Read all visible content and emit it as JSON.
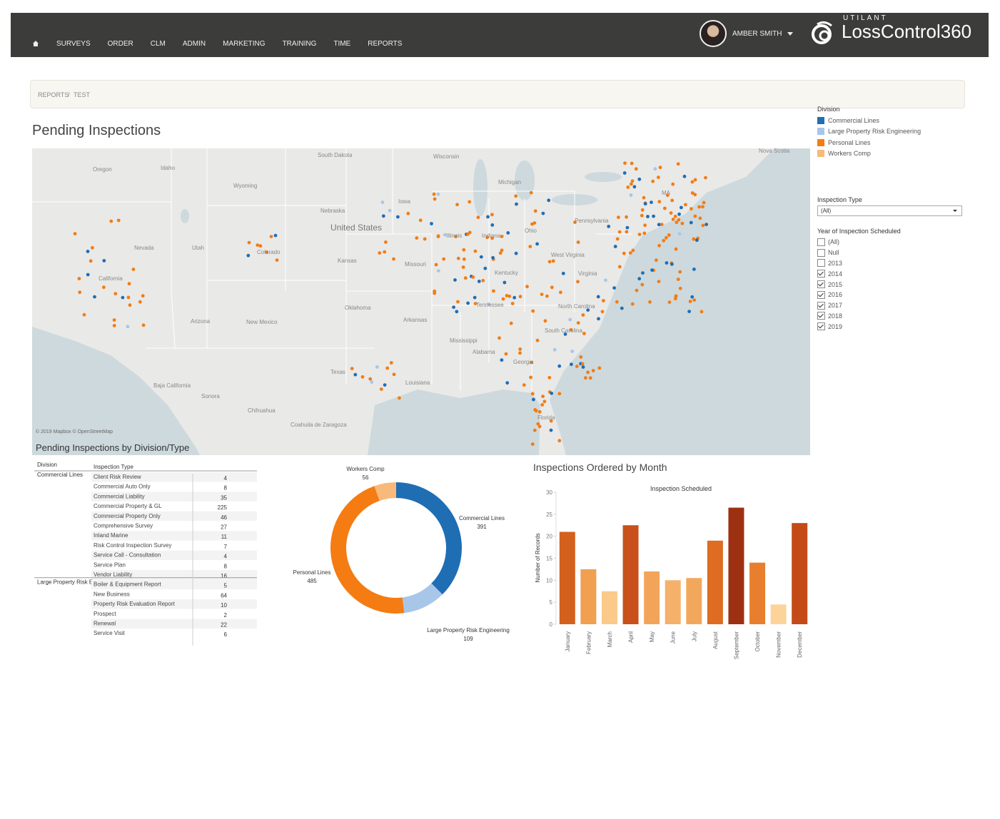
{
  "nav": {
    "items": [
      "SURVEYS",
      "ORDER",
      "CLM",
      "ADMIN",
      "MARKETING",
      "TRAINING",
      "TIME",
      "REPORTS"
    ],
    "user": "AMBER SMITH",
    "brand_small": "UTILANT",
    "brand": "LossControl360"
  },
  "breadcrumb": [
    "REPORTS",
    "TEST"
  ],
  "breadcrumb_separator": "/",
  "page_title": "Pending Inspections",
  "map": {
    "labels": [
      "Oregon",
      "Idaho",
      "Wyoming",
      "South Dakota",
      "Wisconsin",
      "Michigan",
      "Nevada",
      "Utah",
      "Colorado",
      "Nebraska",
      "Iowa",
      "United States",
      "Illinois",
      "Indiana",
      "Ohio",
      "Pennsylvania",
      "California",
      "Kansas",
      "Missouri",
      "West Virginia",
      "Virginia",
      "Kentucky",
      "Arizona",
      "New Mexico",
      "Oklahoma",
      "Arkansas",
      "Tennessee",
      "North Carolina",
      "South Carolina",
      "Mississippi",
      "Alabama",
      "Georgia",
      "Texas",
      "Louisiana",
      "Florida",
      "Sonora",
      "Chihuahua",
      "Coahuila de Zaragoza",
      "Baja California",
      "Nova Scotia",
      "MA"
    ],
    "attribution": "© 2019 Mapbox © OpenStreetMap"
  },
  "filters": {
    "division": {
      "title": "Division",
      "items": [
        {
          "name": "Commercial Lines",
          "color": "#1f6eb4"
        },
        {
          "name": "Large Property Risk Engineering",
          "color": "#a8c6e8"
        },
        {
          "name": "Personal Lines",
          "color": "#f47c12"
        },
        {
          "name": "Workers Comp",
          "color": "#f8b97a"
        }
      ]
    },
    "inspection_type": {
      "title": "Inspection Type",
      "selected": "(All)"
    },
    "year": {
      "title": "Year of Inspection Scheduled",
      "options": [
        {
          "label": "(All)",
          "checked": false
        },
        {
          "label": "Null",
          "checked": false
        },
        {
          "label": "2013",
          "checked": false
        },
        {
          "label": "2014",
          "checked": true
        },
        {
          "label": "2015",
          "checked": true
        },
        {
          "label": "2016",
          "checked": true
        },
        {
          "label": "2017",
          "checked": true
        },
        {
          "label": "2018",
          "checked": true
        },
        {
          "label": "2019",
          "checked": true
        }
      ]
    }
  },
  "table": {
    "title": "Pending Inspections by Division/Type",
    "headers": [
      "Division",
      "Inspection Type"
    ],
    "groups": [
      {
        "division": "Commercial Lines",
        "rows": [
          [
            "Client Risk Review",
            4
          ],
          [
            "Commercial Auto Only",
            8
          ],
          [
            "Commercial Liability",
            35
          ],
          [
            "Commercial Property & GL",
            225
          ],
          [
            "Commercial Property Only",
            46
          ],
          [
            "Comprehensive Survey",
            27
          ],
          [
            "Inland Marine",
            11
          ],
          [
            "Risk Control Inspection Survey",
            7
          ],
          [
            "Service Call - Consultation",
            4
          ],
          [
            "Service Plan",
            8
          ],
          [
            "Vendor Liability",
            16
          ]
        ]
      },
      {
        "division": "Large Property Risk Engineering",
        "rows": [
          [
            "Boiler & Equipment Report",
            5
          ],
          [
            "New Business",
            64
          ],
          [
            "Property Risk Evaluation Report",
            10
          ],
          [
            "Prospect",
            2
          ],
          [
            "Renewal",
            22
          ],
          [
            "Service Visit",
            6
          ]
        ]
      }
    ]
  },
  "chart_data": [
    {
      "type": "donut",
      "categories": [
        "Commercial Lines",
        "Large Property Risk Engineering",
        "Personal Lines",
        "Workers Comp"
      ],
      "values": [
        391,
        109,
        485,
        56
      ],
      "colors": [
        "#1f6eb4",
        "#a8c6e8",
        "#f47c12",
        "#f8b97a"
      ]
    },
    {
      "type": "bar",
      "title": "Inspections Ordered by Month",
      "subtitle": "Inspection Scheduled",
      "y_label": "Number of Records",
      "categories": [
        "January",
        "February",
        "March",
        "April",
        "May",
        "June",
        "July",
        "August",
        "September",
        "October",
        "November",
        "December"
      ],
      "values": [
        21,
        12.5,
        7.5,
        22.5,
        12,
        10,
        10.5,
        19,
        26.5,
        14,
        4.5,
        23
      ],
      "colors": [
        "#d4601e",
        "#f0a050",
        "#fbc98a",
        "#c9501a",
        "#f2a55a",
        "#f5b06a",
        "#f2a85c",
        "#de6c22",
        "#9e3012",
        "#e77f2f",
        "#fcd49a",
        "#c44a18"
      ],
      "ylim": [
        0,
        30
      ],
      "yticks": [
        0,
        5,
        10,
        15,
        20,
        25,
        30
      ]
    }
  ]
}
